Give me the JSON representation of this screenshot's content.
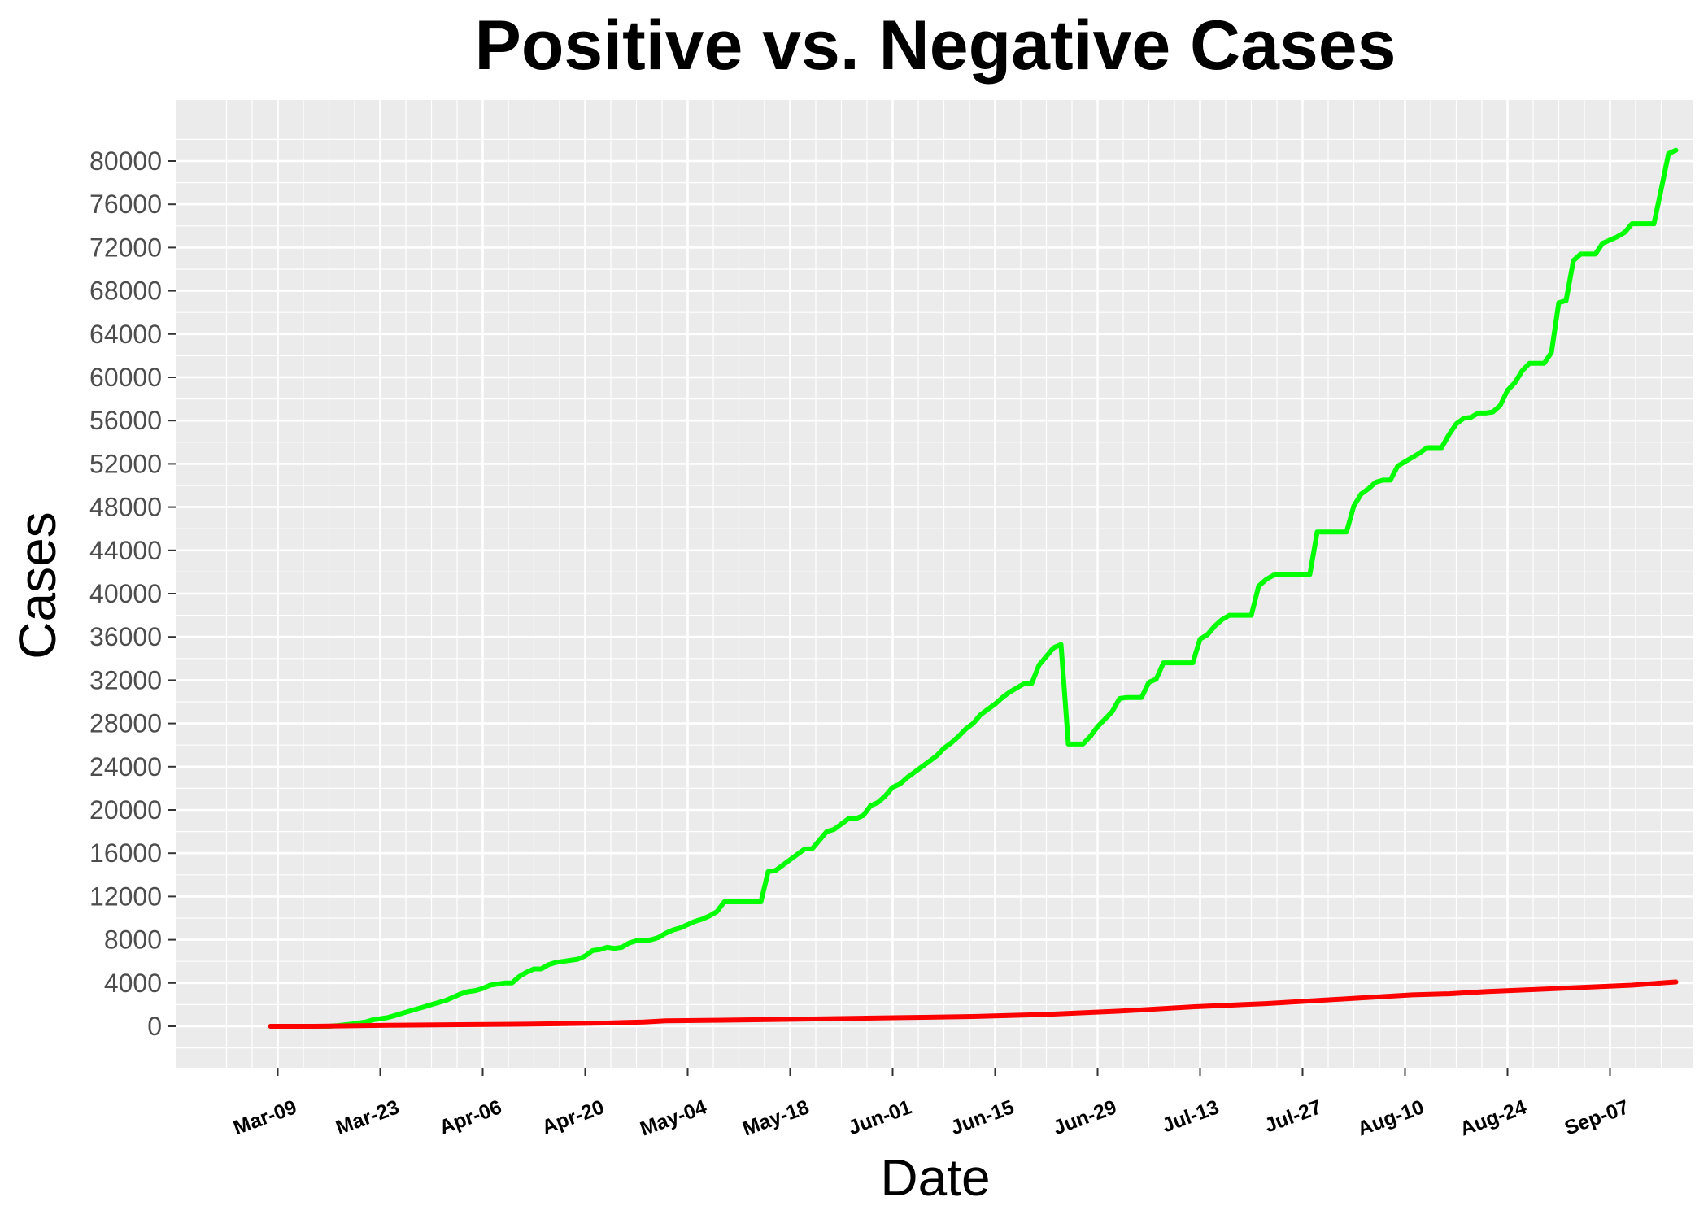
{
  "chart_data": {
    "type": "line",
    "title": "Positive vs. Negative Cases",
    "xlabel": "Date",
    "ylabel": "Cases",
    "x_start": "Mar-04",
    "ylim": [
      -4000,
      85000
    ],
    "y_ticks": [
      0,
      4000,
      8000,
      12000,
      16000,
      20000,
      24000,
      28000,
      32000,
      36000,
      40000,
      44000,
      48000,
      52000,
      56000,
      60000,
      64000,
      68000,
      72000,
      76000,
      80000
    ],
    "x_ticks": [
      "Mar-09",
      "Mar-23",
      "Apr-06",
      "Apr-20",
      "May-04",
      "May-18",
      "Jun-01",
      "Jun-15",
      "Jun-29",
      "Jul-13",
      "Jul-27",
      "Aug-10",
      "Aug-24",
      "Sep-07"
    ],
    "x_tick_days": [
      5,
      19,
      33,
      47,
      61,
      75,
      89,
      103,
      117,
      131,
      145,
      159,
      173,
      187
    ],
    "grid": true,
    "background": "#ebebeb",
    "series": [
      {
        "name": "",
        "color": "#00ff00",
        "points": [
          [
            4,
            0
          ],
          [
            5,
            0
          ],
          [
            6,
            0
          ],
          [
            7,
            0
          ],
          [
            8,
            0
          ],
          [
            9,
            0
          ],
          [
            10,
            0
          ],
          [
            12,
            0
          ],
          [
            13,
            50
          ],
          [
            15,
            200
          ],
          [
            16,
            300
          ],
          [
            17,
            400
          ],
          [
            18,
            600
          ],
          [
            19,
            700
          ],
          [
            20,
            800
          ],
          [
            21,
            1000
          ],
          [
            22,
            1200
          ],
          [
            23,
            1400
          ],
          [
            24,
            1600
          ],
          [
            25,
            1800
          ],
          [
            26,
            2000
          ],
          [
            27,
            2200
          ],
          [
            28,
            2400
          ],
          [
            29,
            2700
          ],
          [
            30,
            3000
          ],
          [
            31,
            3200
          ],
          [
            32,
            3300
          ],
          [
            33,
            3500
          ],
          [
            34,
            3800
          ],
          [
            35,
            3900
          ],
          [
            36,
            4000
          ],
          [
            37,
            4000
          ],
          [
            38,
            4600
          ],
          [
            39,
            5000
          ],
          [
            40,
            5300
          ],
          [
            41,
            5300
          ],
          [
            42,
            5700
          ],
          [
            43,
            5900
          ],
          [
            44,
            6000
          ],
          [
            45,
            6100
          ],
          [
            46,
            6200
          ],
          [
            47,
            6500
          ],
          [
            48,
            7000
          ],
          [
            49,
            7100
          ],
          [
            50,
            7300
          ],
          [
            51,
            7200
          ],
          [
            52,
            7300
          ],
          [
            53,
            7700
          ],
          [
            54,
            7900
          ],
          [
            55,
            7900
          ],
          [
            56,
            8000
          ],
          [
            57,
            8200
          ],
          [
            58,
            8600
          ],
          [
            59,
            8900
          ],
          [
            60,
            9100
          ],
          [
            61,
            9400
          ],
          [
            62,
            9700
          ],
          [
            63,
            9900
          ],
          [
            64,
            10200
          ],
          [
            65,
            10600
          ],
          [
            66,
            11500
          ],
          [
            67,
            11500
          ],
          [
            68,
            11500
          ],
          [
            69,
            11500
          ],
          [
            70,
            11500
          ],
          [
            71,
            11500
          ],
          [
            72,
            14300
          ],
          [
            73,
            14400
          ],
          [
            74,
            14900
          ],
          [
            75,
            15400
          ],
          [
            76,
            15900
          ],
          [
            77,
            16400
          ],
          [
            78,
            16400
          ],
          [
            79,
            17200
          ],
          [
            80,
            18000
          ],
          [
            81,
            18200
          ],
          [
            82,
            18700
          ],
          [
            83,
            19200
          ],
          [
            84,
            19200
          ],
          [
            85,
            19500
          ],
          [
            86,
            20400
          ],
          [
            87,
            20700
          ],
          [
            88,
            21300
          ],
          [
            89,
            22100
          ],
          [
            90,
            22400
          ],
          [
            91,
            23000
          ],
          [
            92,
            23500
          ],
          [
            93,
            24000
          ],
          [
            94,
            24500
          ],
          [
            95,
            25000
          ],
          [
            96,
            25700
          ],
          [
            97,
            26200
          ],
          [
            98,
            26800
          ],
          [
            99,
            27500
          ],
          [
            100,
            28000
          ],
          [
            101,
            28800
          ],
          [
            102,
            29300
          ],
          [
            103,
            29800
          ],
          [
            104,
            30400
          ],
          [
            105,
            30900
          ],
          [
            106,
            31300
          ],
          [
            107,
            31700
          ],
          [
            108,
            31700
          ],
          [
            109,
            33400
          ],
          [
            110,
            34200
          ],
          [
            111,
            35000
          ],
          [
            112,
            35300
          ],
          [
            113,
            26100
          ],
          [
            114,
            26100
          ],
          [
            115,
            26100
          ],
          [
            116,
            26800
          ],
          [
            117,
            27700
          ],
          [
            118,
            28400
          ],
          [
            119,
            29100
          ],
          [
            120,
            30300
          ],
          [
            121,
            30400
          ],
          [
            122,
            30400
          ],
          [
            123,
            30400
          ],
          [
            124,
            31800
          ],
          [
            125,
            32100
          ],
          [
            126,
            33600
          ],
          [
            127,
            33600
          ],
          [
            128,
            33600
          ],
          [
            129,
            33600
          ],
          [
            130,
            33600
          ],
          [
            131,
            35800
          ],
          [
            132,
            36200
          ],
          [
            133,
            37000
          ],
          [
            134,
            37600
          ],
          [
            135,
            38000
          ],
          [
            136,
            38000
          ],
          [
            137,
            38000
          ],
          [
            138,
            38000
          ],
          [
            139,
            40700
          ],
          [
            140,
            41300
          ],
          [
            141,
            41700
          ],
          [
            142,
            41800
          ],
          [
            143,
            41800
          ],
          [
            144,
            41800
          ],
          [
            145,
            41800
          ],
          [
            146,
            41800
          ],
          [
            147,
            45700
          ],
          [
            148,
            45700
          ],
          [
            149,
            45700
          ],
          [
            150,
            45700
          ],
          [
            151,
            45700
          ],
          [
            152,
            48100
          ],
          [
            153,
            49200
          ],
          [
            154,
            49700
          ],
          [
            155,
            50300
          ],
          [
            156,
            50500
          ],
          [
            157,
            50500
          ],
          [
            158,
            51800
          ],
          [
            159,
            52200
          ],
          [
            160,
            52600
          ],
          [
            161,
            53000
          ],
          [
            162,
            53500
          ],
          [
            163,
            53500
          ],
          [
            164,
            53500
          ],
          [
            165,
            54700
          ],
          [
            166,
            55700
          ],
          [
            167,
            56200
          ],
          [
            168,
            56300
          ],
          [
            169,
            56700
          ],
          [
            170,
            56700
          ],
          [
            171,
            56800
          ],
          [
            172,
            57400
          ],
          [
            173,
            58800
          ],
          [
            174,
            59500
          ],
          [
            175,
            60600
          ],
          [
            176,
            61300
          ],
          [
            177,
            61300
          ],
          [
            178,
            61300
          ],
          [
            179,
            62300
          ],
          [
            180,
            66900
          ],
          [
            181,
            67100
          ],
          [
            182,
            70800
          ],
          [
            183,
            71400
          ],
          [
            184,
            71400
          ],
          [
            185,
            71400
          ],
          [
            186,
            72400
          ],
          [
            187,
            72700
          ],
          [
            188,
            73000
          ],
          [
            189,
            73400
          ],
          [
            190,
            74200
          ],
          [
            191,
            74200
          ],
          [
            192,
            74200
          ],
          [
            193,
            74200
          ],
          [
            194,
            77400
          ],
          [
            195,
            80700
          ],
          [
            196,
            81000
          ]
        ]
      },
      {
        "name": "",
        "color": "#ff0000",
        "points": [
          [
            4,
            0
          ],
          [
            10,
            0
          ],
          [
            16,
            50
          ],
          [
            20,
            100
          ],
          [
            30,
            150
          ],
          [
            40,
            200
          ],
          [
            50,
            300
          ],
          [
            55,
            400
          ],
          [
            58,
            500
          ],
          [
            70,
            600
          ],
          [
            80,
            700
          ],
          [
            90,
            800
          ],
          [
            100,
            900
          ],
          [
            110,
            1100
          ],
          [
            120,
            1400
          ],
          [
            130,
            1800
          ],
          [
            140,
            2100
          ],
          [
            150,
            2500
          ],
          [
            160,
            2900
          ],
          [
            165,
            3000
          ],
          [
            170,
            3200
          ],
          [
            180,
            3500
          ],
          [
            190,
            3800
          ],
          [
            194,
            4000
          ],
          [
            196,
            4100
          ]
        ]
      }
    ]
  }
}
